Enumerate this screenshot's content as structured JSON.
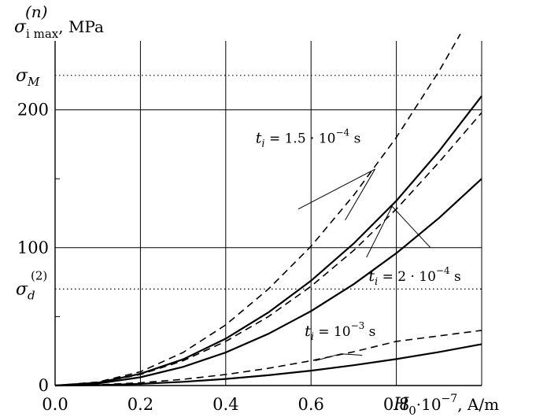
{
  "chart_data": {
    "type": "line",
    "xlim": [
      0,
      1.0
    ],
    "ylim": [
      0,
      250
    ],
    "grid": true,
    "x_ticks": [
      0.0,
      0.2,
      0.4,
      0.6,
      0.8
    ],
    "x_tick_labels": [
      "0.0",
      "0.2",
      "0.4",
      "0.6",
      "0.8"
    ],
    "y_ticks": [
      0,
      100,
      200
    ],
    "y_tick_labels": [
      "0",
      "100",
      "200"
    ],
    "y_minor_ticks": [
      50,
      150
    ],
    "ylabel": {
      "sigma": "σ",
      "sub": "i max",
      "sup": "(n)",
      "unit": ", MPa"
    },
    "xlabel": {
      "sym": "H",
      "sub": "0",
      "factor": "·10",
      "exp": "−7",
      "unit": ", A/m"
    },
    "reference_lines": [
      {
        "y": 225,
        "sym": "σ",
        "sub": "M",
        "sup": ""
      },
      {
        "y": 70,
        "sym": "σ",
        "sub": "d",
        "sup": "(2)"
      }
    ],
    "series": [
      {
        "style": "dashed",
        "x": [
          0,
          0.1,
          0.2,
          0.3,
          0.4,
          0.5,
          0.6,
          0.7,
          0.8,
          0.9,
          0.95
        ],
        "y": [
          0,
          2.5,
          10,
          24,
          44,
          70,
          101,
          138,
          180,
          228,
          255
        ]
      },
      {
        "style": "solid",
        "x": [
          0,
          0.1,
          0.2,
          0.3,
          0.4,
          0.5,
          0.6,
          0.7,
          0.8,
          0.9,
          1.0
        ],
        "y": [
          0,
          2,
          8.5,
          19,
          34,
          53,
          76,
          103,
          134,
          170,
          210
        ]
      },
      {
        "style": "dashed",
        "x": [
          0,
          0.1,
          0.2,
          0.3,
          0.4,
          0.5,
          0.6,
          0.7,
          0.8,
          0.9,
          1.0
        ],
        "y": [
          0,
          2,
          8,
          18,
          32,
          50,
          72,
          98,
          128,
          162,
          198
        ]
      },
      {
        "style": "solid",
        "x": [
          0,
          0.1,
          0.2,
          0.3,
          0.4,
          0.5,
          0.6,
          0.7,
          0.8,
          0.9,
          1.0
        ],
        "y": [
          0,
          1.5,
          6,
          13.5,
          24,
          37.5,
          54,
          73.5,
          96,
          121.5,
          150
        ]
      },
      {
        "style": "dashed",
        "x": [
          0,
          0.1,
          0.2,
          0.3,
          0.4,
          0.5,
          0.6,
          0.7,
          0.8,
          0.9,
          1.0
        ],
        "y": [
          0,
          0.5,
          2,
          4.5,
          8,
          12.5,
          18,
          24.5,
          32,
          36,
          40
        ]
      },
      {
        "style": "solid",
        "x": [
          0,
          0.1,
          0.2,
          0.3,
          0.4,
          0.5,
          0.6,
          0.7,
          0.8,
          0.9,
          1.0
        ],
        "y": [
          0,
          0.3,
          1.2,
          2.7,
          4.8,
          7.5,
          10.8,
          14.7,
          19.2,
          24.3,
          30
        ]
      }
    ],
    "annotations": [
      {
        "label_parts": [
          "t",
          "i",
          " = 1.5 · 10",
          "−4",
          " s"
        ],
        "label_at": [
          0.47,
          176
        ],
        "targets": [
          [
            0.75,
            157
          ],
          [
            0.57,
            128
          ],
          [
            0.68,
            120
          ]
        ]
      },
      {
        "label_parts": [
          "t",
          "i",
          " = 2 · 10",
          "−4",
          " s"
        ],
        "label_at": [
          0.735,
          76
        ],
        "targets": [
          [
            0.79,
            130
          ],
          [
            0.88,
            100
          ],
          [
            0.73,
            93
          ]
        ]
      },
      {
        "label_parts": [
          "t",
          "i",
          " = 10",
          "−3",
          " s"
        ],
        "label_at": [
          0.585,
          36
        ],
        "targets": [
          [
            0.67,
            23
          ],
          [
            0.72,
            22
          ],
          [
            0.61,
            18
          ]
        ]
      }
    ]
  }
}
